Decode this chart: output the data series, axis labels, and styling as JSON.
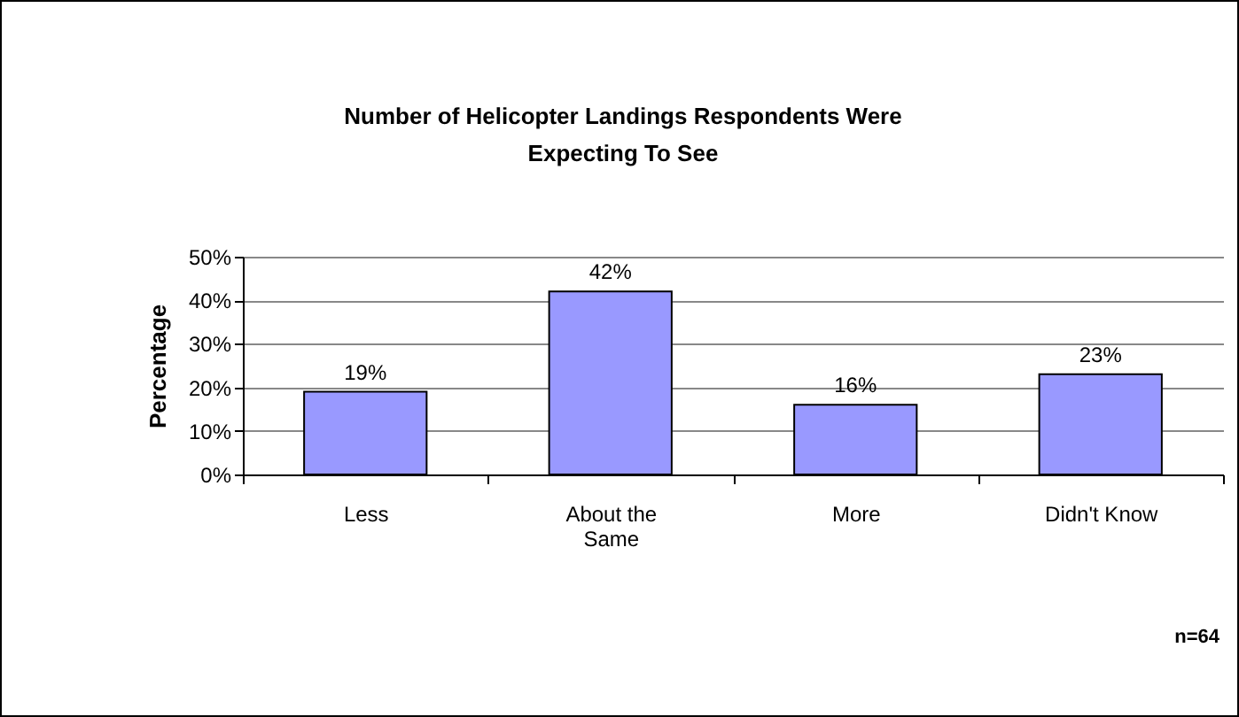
{
  "chart_data": {
    "type": "bar",
    "title": "Number of Helicopter Landings Respondents Were Expecting To See",
    "ylabel": "Percentage",
    "categories": [
      "Less",
      "About the Same",
      "More",
      "Didn't Know"
    ],
    "values": [
      19,
      42,
      16,
      23
    ],
    "value_labels": [
      "19%",
      "42%",
      "16%",
      "23%"
    ],
    "color": "#9999ff",
    "ylim": [
      0,
      50
    ],
    "yticks": [
      {
        "value": 0,
        "label": "0%"
      },
      {
        "value": 10,
        "label": "10%"
      },
      {
        "value": 20,
        "label": "20%"
      },
      {
        "value": 30,
        "label": "30%"
      },
      {
        "value": 40,
        "label": "40%"
      },
      {
        "value": 50,
        "label": "50%"
      }
    ],
    "grid": "y",
    "annotations": [
      "n=64"
    ]
  }
}
